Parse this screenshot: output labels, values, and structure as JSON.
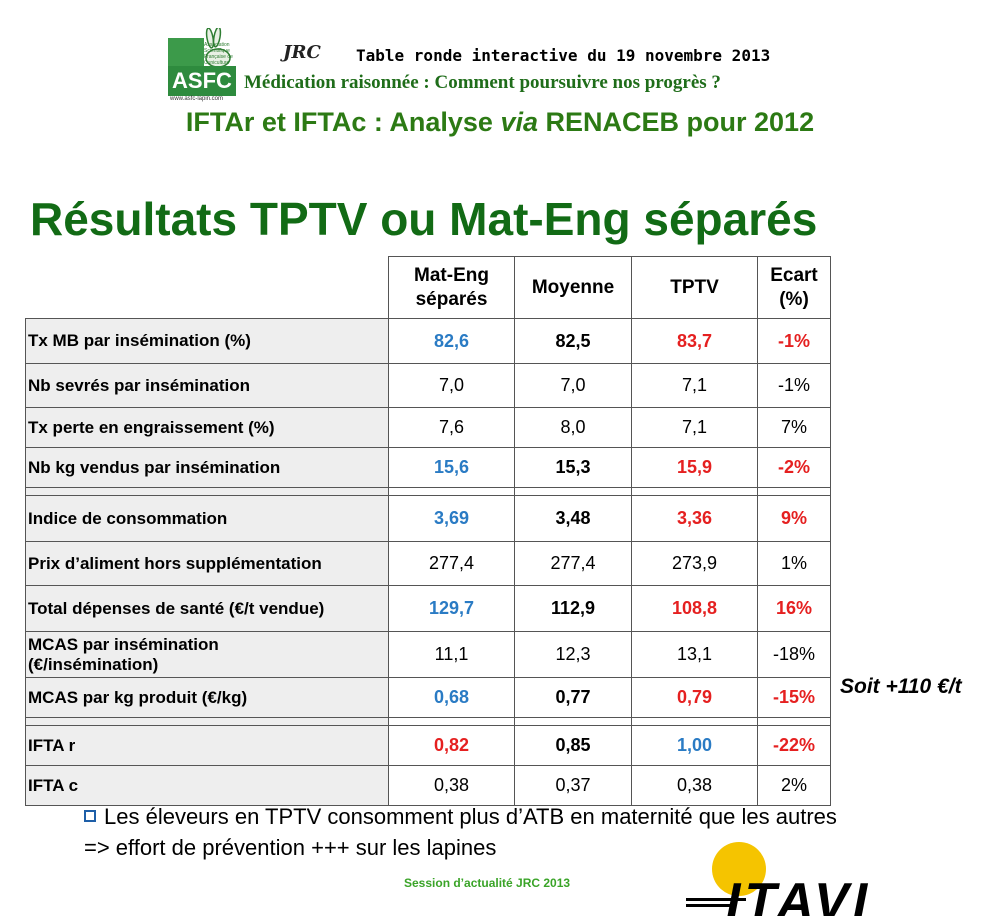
{
  "header": {
    "asfc_logo_text": "ASFC",
    "asfc_logo_small": "Association Scientifique Française de Cuniculture",
    "asfc_logo_url": "www.asfc-lapin.com",
    "jrc_logo_text": "JRC",
    "line1": "Table ronde interactive du 19 novembre 2013",
    "line2": "Médication raisonnée : Comment poursuivre nos progrès ?",
    "line3_pre": "IFTAr et IFTAc : Analyse ",
    "line3_via": "via",
    "line3_post": " RENACEB pour 2012"
  },
  "title": "Résultats TPTV ou Mat-Eng séparés",
  "table": {
    "headers": {
      "mat_eng_line1": "Mat-Eng",
      "mat_eng_line2": "séparés",
      "moyenne": "Moyenne",
      "tptv": "TPTV",
      "ecart_line1": "Ecart",
      "ecart_line2": "(%)"
    },
    "rows": [
      {
        "label": "Tx MB par insémination (%)",
        "mat_eng": "82,6",
        "moyenne": "82,5",
        "tptv": "83,7",
        "ecart": "-1%"
      },
      {
        "label": "Nb sevrés par insémination",
        "mat_eng": "7,0",
        "moyenne": "7,0",
        "tptv": "7,1",
        "ecart": "-1%"
      },
      {
        "label": "Tx perte en engraissement (%)",
        "mat_eng": "7,6",
        "moyenne": "8,0",
        "tptv": "7,1",
        "ecart": "7%"
      },
      {
        "label": "Nb kg vendus par insémination",
        "mat_eng": "15,6",
        "moyenne": "15,3",
        "tptv": "15,9",
        "ecart": "-2%"
      },
      {
        "label": "Indice de consommation",
        "mat_eng": "3,69",
        "moyenne": "3,48",
        "tptv": "3,36",
        "ecart": "9%"
      },
      {
        "label": "Prix d’aliment hors supplémentation",
        "mat_eng": "277,4",
        "moyenne": "277,4",
        "tptv": "273,9",
        "ecart": "1%"
      },
      {
        "label": "Total dépenses de santé (€/t vendue)",
        "mat_eng": "129,7",
        "moyenne": "112,9",
        "tptv": "108,8",
        "ecart": "16%"
      },
      {
        "label": "MCAS par insémination (€/insémination)",
        "label_line1": "MCAS par insémination",
        "label_line2": "(€/insémination)",
        "mat_eng": "11,1",
        "moyenne": "12,3",
        "tptv": "13,1",
        "ecart": "-18%"
      },
      {
        "label": "MCAS par kg produit (€/kg)",
        "mat_eng": "0,68",
        "moyenne": "0,77",
        "tptv": "0,79",
        "ecart": "-15%"
      },
      {
        "label": "IFTA r",
        "mat_eng": "0,82",
        "moyenne": "0,85",
        "tptv": "1,00",
        "ecart": "-22%"
      },
      {
        "label": "IFTA c",
        "mat_eng": "0,38",
        "moyenne": "0,37",
        "tptv": "0,38",
        "ecart": "2%"
      }
    ]
  },
  "side_note": "Soit +110 €/t",
  "bullets": {
    "line1": "Les éleveurs en TPTV consomment plus d’ATB en maternité que les autres",
    "line2": "=> effort de prévention +++ sur les lapines"
  },
  "footer": {
    "session": "Session d’actualité JRC 2013",
    "itavi_logo_text": "ITAVI"
  },
  "colors": {
    "title_green": "#126b15",
    "subtitle_green": "#2c7a14",
    "header_green": "#1f6d1a",
    "value_blue": "#2a7bc4",
    "value_red": "#e52020",
    "session_green": "#3aa428",
    "itavi_sun": "#f5c400",
    "row_label_bg": "#eeeeee"
  },
  "icons": [
    "asfc-logo",
    "rabbit-icon",
    "jrc-logo",
    "checkbox-bullet-icon",
    "itavi-logo",
    "sun-icon"
  ]
}
